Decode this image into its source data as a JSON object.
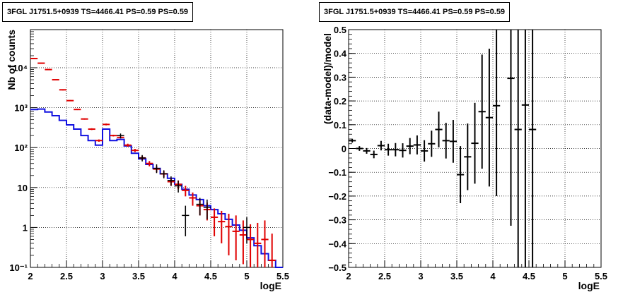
{
  "chart_data": [
    {
      "type": "histogram",
      "title": "3FGL J1751.5+0939 TS=4466.41 PS=0.59 PS=0.59",
      "xlabel": "logE",
      "ylabel": "Nb of counts",
      "xlim": [
        2,
        5.5
      ],
      "ylim": [
        0.1,
        90000
      ],
      "yscale": "log",
      "grid": true,
      "x_ticks": [
        "2",
        "2.5",
        "3",
        "3.5",
        "4",
        "4.5",
        "5",
        "5.5"
      ],
      "x_tick_values": [
        2,
        2.5,
        3,
        3.5,
        4,
        4.5,
        5,
        5.5
      ],
      "y_ticks": [
        "10⁻¹",
        "1",
        "10",
        "10²",
        "10³",
        "10⁴"
      ],
      "y_tick_values": [
        0.1,
        1,
        10,
        100,
        1000,
        10000
      ],
      "model_series": {
        "color": "#1010e0",
        "bin_edges": [
          2.0,
          2.1,
          2.2,
          2.3,
          2.4,
          2.5,
          2.6,
          2.7,
          2.8,
          2.9,
          3.0,
          3.1,
          3.2,
          3.3,
          3.4,
          3.5,
          3.6,
          3.7,
          3.8,
          3.9,
          4.0,
          4.1,
          4.2,
          4.3,
          4.4,
          4.5,
          4.6,
          4.7,
          4.8,
          4.9,
          5.0,
          5.1,
          5.2,
          5.3,
          5.4,
          5.5
        ],
        "values": [
          900,
          920,
          780,
          630,
          480,
          370,
          290,
          200,
          150,
          115,
          290,
          150,
          160,
          110,
          72,
          52,
          38,
          30,
          22,
          17,
          12,
          9,
          6.5,
          5,
          3.5,
          2.8,
          2.2,
          1.6,
          1.15,
          0.85,
          0.55,
          0.35,
          0.22,
          0.15,
          0.1
        ]
      },
      "counts_series": {
        "color": "#e00000",
        "x": [
          2.05,
          2.15,
          2.25,
          2.35,
          2.45,
          2.55,
          2.65,
          2.75,
          2.85,
          2.95,
          3.05,
          3.15,
          3.25,
          3.35,
          3.45,
          3.55,
          3.65,
          3.75,
          3.85,
          3.95,
          4.05,
          4.15,
          4.25,
          4.35,
          4.45,
          4.55,
          4.65,
          4.75,
          4.85,
          4.95,
          5.05,
          5.15,
          5.25,
          5.35
        ],
        "y": [
          17000,
          13000,
          9000,
          5000,
          2800,
          1500,
          900,
          520,
          290,
          150,
          380,
          200,
          180,
          115,
          85,
          55,
          40,
          29,
          22,
          14,
          12,
          8.5,
          5.5,
          3.5,
          2.8,
          1.8,
          1.4,
          1.05,
          0.8,
          0.65,
          0.5,
          0.4,
          0.5,
          0.15
        ],
        "y_low": [
          16500,
          12600,
          8800,
          4900,
          2700,
          1450,
          870,
          500,
          275,
          140,
          360,
          190,
          170,
          105,
          77,
          48,
          34,
          24,
          18,
          11,
          9,
          6,
          3.5,
          2,
          1.5,
          0.6,
          0.4,
          0.2,
          0.15,
          0.12,
          0.1,
          0.1,
          0.1,
          0.1
        ],
        "y_high": [
          17500,
          13400,
          9200,
          5100,
          2900,
          1550,
          930,
          540,
          305,
          160,
          400,
          210,
          190,
          125,
          93,
          62,
          46,
          34,
          26,
          17,
          15,
          11,
          7.5,
          5,
          4.2,
          3,
          2.6,
          2.2,
          2.0,
          1.5,
          1.2,
          1.3,
          1.5,
          0.7
        ]
      },
      "data_points": {
        "color": "#000000",
        "x": [
          3.25,
          3.55,
          3.75,
          3.85,
          3.95,
          4.05,
          4.15,
          4.35,
          4.45,
          5.0
        ],
        "y": [
          200,
          55,
          30,
          22,
          15,
          11,
          2,
          3.8,
          3.2,
          1.0
        ],
        "y_low": [
          170,
          45,
          23,
          17,
          11,
          7.5,
          0.6,
          2,
          1.6,
          0.4
        ],
        "y_high": [
          225,
          65,
          38,
          27,
          19,
          15,
          3.5,
          5.5,
          5,
          1.8
        ]
      }
    },
    {
      "type": "errorbar",
      "title": "3FGL J1751.5+0939 TS=4466.41 PS=0.59 PS=0.59",
      "xlabel": "logE",
      "ylabel": "(data-model)/model",
      "xlim": [
        2,
        5.5
      ],
      "ylim": [
        -0.5,
        0.5
      ],
      "grid": true,
      "x_ticks": [
        "2",
        "2.5",
        "3",
        "3.5",
        "4",
        "4.5",
        "5",
        "5.5"
      ],
      "x_tick_values": [
        2,
        2.5,
        3,
        3.5,
        4,
        4.5,
        5,
        5.5
      ],
      "y_ticks": [
        "−0.5",
        "−0.4",
        "−0.3",
        "−0.2",
        "−0.1",
        "0",
        "0.1",
        "0.2",
        "0.3",
        "0.4",
        "0.5"
      ],
      "y_tick_values": [
        -0.5,
        -0.4,
        -0.3,
        -0.2,
        -0.1,
        0,
        0.1,
        0.2,
        0.3,
        0.4,
        0.5
      ],
      "points": {
        "color": "#000000",
        "x": [
          2.05,
          2.15,
          2.25,
          2.35,
          2.45,
          2.55,
          2.65,
          2.75,
          2.85,
          2.95,
          3.05,
          3.15,
          3.25,
          3.35,
          3.45,
          3.55,
          3.65,
          3.75,
          3.85,
          3.95,
          4.05,
          4.25,
          4.35,
          4.45,
          4.55
        ],
        "y": [
          0.033,
          0.0,
          -0.01,
          -0.025,
          0.012,
          -0.005,
          -0.005,
          -0.008,
          0.01,
          0.015,
          -0.01,
          0.02,
          0.08,
          0.033,
          0.03,
          -0.11,
          -0.035,
          0.022,
          0.155,
          0.13,
          0.18,
          0.295,
          0.08,
          0.183,
          0.08
        ],
        "y_err": [
          0.008,
          0.01,
          0.012,
          0.016,
          0.02,
          0.025,
          0.028,
          0.03,
          0.034,
          0.04,
          0.045,
          0.055,
          0.075,
          0.075,
          0.09,
          0.12,
          0.14,
          0.17,
          0.24,
          0.29,
          0.38,
          0.62,
          0.58,
          0.72,
          0.8
        ]
      }
    }
  ]
}
